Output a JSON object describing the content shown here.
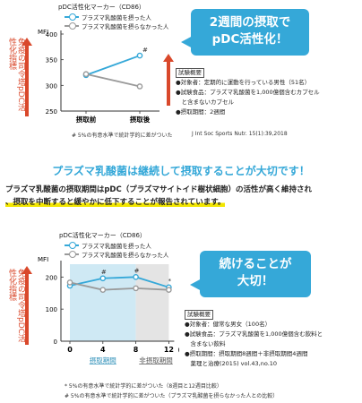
{
  "chart_data": [
    {
      "type": "line",
      "title": "pDC活性化マーカー（CD86）",
      "ylabel": "MFI",
      "side_label": "免疫の司令塔pDC活性化指標",
      "categories": [
        "摂取前",
        "摂取後"
      ],
      "series": [
        {
          "name": "プラズマ乳酸菌を摂った人",
          "color": "#35a8d8",
          "values": [
            320,
            358
          ]
        },
        {
          "name": "プラズマ乳酸菌を摂らなかった人",
          "color": "#9a9a9a",
          "values": [
            322,
            298
          ]
        }
      ],
      "yticks": [
        250,
        300,
        350,
        400
      ],
      "ylim": [
        250,
        400
      ],
      "significance": "#",
      "footnote": "# 5%の有意水準で統計学的に差がついた"
    },
    {
      "type": "line",
      "title": "pDC活性化マーカー（CD86）",
      "ylabel": "MFI",
      "side_label": "免疫の司令塔pDC活性化指標",
      "x": [
        0,
        4,
        8,
        12
      ],
      "x_unit": "（週）",
      "series": [
        {
          "name": "プラズマ乳酸菌を摂った人",
          "color": "#35a8d8",
          "values": [
            173,
            196,
            200,
            168
          ]
        },
        {
          "name": "プラズマ乳酸菌を摂らなかった人",
          "color": "#9a9a9a",
          "values": [
            183,
            160,
            165,
            160
          ]
        }
      ],
      "yticks": [
        0,
        100,
        200
      ],
      "ylim": [
        0,
        240
      ],
      "markers": [
        "#",
        "#",
        "*"
      ],
      "periods": [
        "摂取期間",
        "非摂取期間"
      ],
      "footnotes": [
        "* 5%の有意水準で統計学的に差がついた（8週目と12週目比較）",
        "# 5%の有意水準で統計学的に差がついた（プラズマ乳酸菌を摂らなかった人との比較）"
      ]
    }
  ],
  "top": {
    "bubble": [
      "2週間の摂取で",
      "pDC活性化！"
    ],
    "summary_header": "試験概要",
    "summary": [
      "●対象者：定期的に運動を行っている男性（51名）",
      "●試験食品：プラズマ乳酸菌を1,000億個含むカプセル",
      "　と含まないカプセル",
      "●摂取期間：2週間"
    ],
    "citation": "J Int Soc Sports Nutr. 15(1):39,2018"
  },
  "headline": "プラズマ乳酸菌は継続して摂取することが大切です！",
  "body": [
    "プラズマ乳酸菌の摂取期間はpDC（プラズマサイトイド樹状細胞）の活性が高く維持され",
    "、摂取を中断すると緩やかに低下することが報告されています。"
  ],
  "bottom": {
    "bubble": [
      "続けることが",
      "大切！"
    ],
    "summary_header": "試験概要",
    "summary": [
      "●対象者：健常な男女（100名）",
      "●試験食品：プラズマ乳酸菌を1,000億個含む飲料と",
      "　含まない飲料",
      "●摂取期間：摂取期間8週間＋非摂取期間4週間",
      "　薬理と治療(2015) vol.43,no.10"
    ]
  },
  "colors": {
    "accent": "#35a8d8",
    "control": "#9a9a9a",
    "label": "#d9482b",
    "highlight": "#f2e600"
  }
}
